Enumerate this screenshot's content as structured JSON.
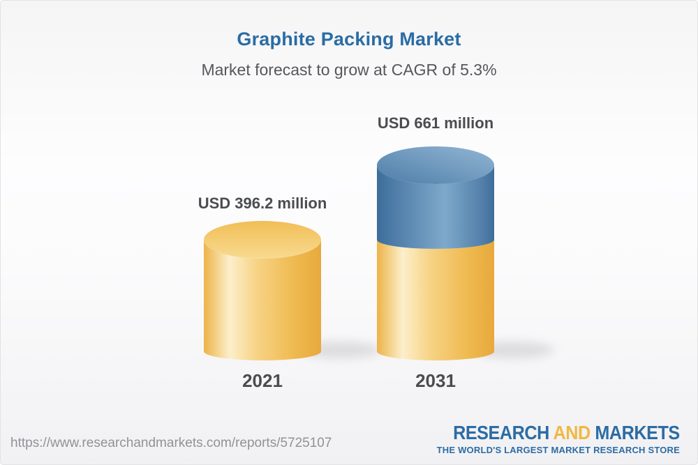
{
  "header": {
    "title": "Graphite Packing Market",
    "subtitle": "Market forecast to grow at CAGR of 5.3%"
  },
  "chart_data": {
    "type": "bar",
    "variant": "3d-cylinder",
    "title": "Graphite Packing Market",
    "subtitle": "Market forecast to grow at CAGR of 5.3%",
    "cagr_percent": 5.3,
    "unit": "USD million",
    "categories": [
      "2021",
      "2031"
    ],
    "values": [
      396.2,
      661
    ],
    "value_labels": [
      "USD 396.2 million",
      "USD 661 million"
    ],
    "legend": "none",
    "axes": "none",
    "notes": "2031 cylinder is stacked: gold base equals the 2021 value, blue top section is the forecast growth",
    "colors": {
      "base_segment_gold": "#F2BE55",
      "growth_segment_blue": "#4C7CA8"
    }
  },
  "footer": {
    "url": "https://www.researchandmarkets.com/reports/5725107",
    "logo": {
      "line1_part1": "RESEARCH",
      "line1_part2": "AND",
      "line1_part3": "MARKETS",
      "tagline": "THE WORLD'S LARGEST MARKET RESEARCH STORE",
      "colors": {
        "blue": "#2C6CA4",
        "yellow": "#F0B843"
      }
    }
  }
}
